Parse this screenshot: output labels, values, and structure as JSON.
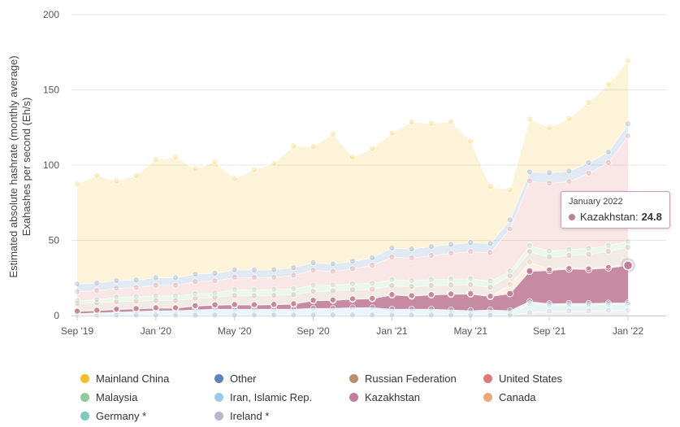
{
  "chart_data": {
    "type": "area",
    "stacked": true,
    "ylabel_line1": "Estimated absolute hashrate (monthly average)",
    "ylabel_line2": "Exahashes per second (Eh/s)",
    "ylim": [
      0,
      200
    ],
    "yticks": [
      0,
      50,
      100,
      150,
      200
    ],
    "x_tick_labels": [
      {
        "index": 0,
        "label": "Sep '19"
      },
      {
        "index": 4,
        "label": "Jan '20"
      },
      {
        "index": 8,
        "label": "May '20"
      },
      {
        "index": 12,
        "label": "Sep '20"
      },
      {
        "index": 16,
        "label": "Jan '21"
      },
      {
        "index": 20,
        "label": "May '21"
      },
      {
        "index": 24,
        "label": "Sep '21"
      },
      {
        "index": 28,
        "label": "Jan '22"
      }
    ],
    "x": [
      "2019-09",
      "2019-10",
      "2019-11",
      "2019-12",
      "2020-01",
      "2020-02",
      "2020-03",
      "2020-04",
      "2020-05",
      "2020-06",
      "2020-07",
      "2020-08",
      "2020-09",
      "2020-10",
      "2020-11",
      "2020-12",
      "2021-01",
      "2021-02",
      "2021-03",
      "2021-04",
      "2021-05",
      "2021-06",
      "2021-07",
      "2021-08",
      "2021-09",
      "2021-10",
      "2021-11",
      "2021-12",
      "2022-01"
    ],
    "grid": true,
    "legend_position": "bottom",
    "series": [
      {
        "name": "Ireland *",
        "color": "#b3b8cc",
        "values": [
          0.2,
          0.2,
          0.2,
          0.2,
          0.2,
          0.2,
          0.2,
          0.2,
          0.2,
          0.2,
          0.2,
          0.2,
          0.2,
          0.2,
          0.2,
          0.2,
          0.2,
          0.2,
          0.2,
          0.2,
          0.2,
          0.2,
          0.2,
          2.0,
          3.0,
          3.2,
          3.2,
          3.5,
          3.6
        ]
      },
      {
        "name": "Germany *",
        "color": "#7ec8bf",
        "values": [
          0.2,
          0.2,
          0.2,
          0.2,
          0.2,
          0.2,
          0.2,
          0.2,
          0.2,
          0.2,
          0.2,
          0.2,
          0.2,
          0.2,
          0.2,
          0.2,
          0.2,
          0.2,
          0.2,
          0.2,
          0.2,
          0.2,
          0.2,
          6.0,
          4.0,
          4.0,
          4.0,
          4.0,
          4.0
        ]
      },
      {
        "name": "Iran, Islamic Rep.",
        "color": "#9dc9ec",
        "values": [
          1.0,
          1.5,
          2.0,
          2.5,
          3.0,
          3.0,
          3.5,
          4.0,
          4.0,
          4.0,
          4.0,
          4.0,
          4.5,
          4.5,
          5.0,
          5.0,
          4.0,
          4.0,
          4.0,
          3.5,
          3.0,
          3.5,
          3.0,
          1.5,
          1.0,
          1.0,
          1.0,
          1.0,
          1.0
        ]
      },
      {
        "name": "Kazakhstan",
        "color": "#c07e98",
        "values": [
          1.4,
          1.5,
          1.7,
          1.6,
          1.6,
          1.6,
          2.5,
          2.6,
          2.8,
          2.7,
          2.9,
          3.3,
          5.1,
          5.3,
          5.6,
          5.9,
          9.4,
          8.7,
          9.4,
          10.3,
          11.0,
          8.8,
          11.2,
          20.0,
          22.0,
          22.8,
          22.5,
          23.2,
          24.8
        ]
      },
      {
        "name": "Canada",
        "color": "#eba77a",
        "values": [
          0.2,
          0.2,
          0.2,
          0.2,
          0.2,
          0.2,
          0.2,
          0.2,
          0.2,
          0.2,
          0.2,
          0.2,
          0.2,
          0.2,
          0.2,
          0.2,
          0.2,
          0.2,
          0.2,
          0.2,
          0.2,
          0.2,
          6.0,
          6.0,
          1.0,
          1.0,
          1.0,
          1.0,
          1.0
        ]
      },
      {
        "name": "Russian Federation",
        "color": "#b98d6f",
        "values": [
          5.0,
          5.0,
          5.0,
          5.0,
          5.0,
          5.0,
          5.0,
          5.0,
          6.0,
          6.0,
          6.0,
          6.0,
          6.0,
          6.0,
          6.0,
          6.0,
          6.0,
          6.0,
          6.0,
          6.0,
          6.0,
          6.0,
          6.0,
          7.0,
          8.0,
          8.0,
          9.0,
          10.0,
          11.0
        ]
      },
      {
        "name": "Malaysia",
        "color": "#8fcc9a",
        "values": [
          2.0,
          2.0,
          3.0,
          3.0,
          3.0,
          3.0,
          3.0,
          3.0,
          4.0,
          4.0,
          4.0,
          4.0,
          4.0,
          4.0,
          4.0,
          4.0,
          4.0,
          4.0,
          4.0,
          4.0,
          4.0,
          4.0,
          3.0,
          4.0,
          4.0,
          4.0,
          4.0,
          4.0,
          4.0
        ]
      },
      {
        "name": "United States",
        "color": "#e07a78",
        "values": [
          6.0,
          6.0,
          6.0,
          6.0,
          7.0,
          7.0,
          8.0,
          8.0,
          8.0,
          8.0,
          8.0,
          9.0,
          10.0,
          9.0,
          10.0,
          12.0,
          15.0,
          15.0,
          16.0,
          17.0,
          18.0,
          19.0,
          28.0,
          43.0,
          45.0,
          45.0,
          50.0,
          55.0,
          70.0
        ]
      },
      {
        "name": "Other",
        "color": "#5b83bf",
        "values": [
          5.0,
          5.0,
          5.0,
          5.0,
          5.0,
          5.0,
          5.0,
          5.0,
          5.0,
          5.0,
          5.0,
          5.0,
          5.0,
          5.0,
          5.0,
          5.0,
          6.0,
          6.0,
          6.0,
          6.0,
          6.0,
          6.0,
          6.0,
          6.0,
          7.0,
          7.0,
          7.0,
          7.0,
          8.0
        ]
      },
      {
        "name": "Mainland China",
        "color": "#f6bd2b",
        "values": [
          66.6,
          71.6,
          66.2,
          69.4,
          78.6,
          80.0,
          70.0,
          74.0,
          60.7,
          66.7,
          70.6,
          80.9,
          77.2,
          86.4,
          69.2,
          72.5,
          76.3,
          84.4,
          81.7,
          81.4,
          67.4,
          38.0,
          20.0,
          35.0,
          30.0,
          35.0,
          40.0,
          45.0,
          42.0
        ]
      }
    ]
  },
  "legend": [
    {
      "label": "Mainland China",
      "color": "#f6bd2b"
    },
    {
      "label": "Other",
      "color": "#5b83bf"
    },
    {
      "label": "Russian Federation",
      "color": "#b98d6f"
    },
    {
      "label": "United States",
      "color": "#e07a78"
    },
    {
      "label": "Malaysia",
      "color": "#8fcc9a"
    },
    {
      "label": "Iran, Islamic Rep.",
      "color": "#9dc9ec"
    },
    {
      "label": "Kazakhstan",
      "color": "#c07e98"
    },
    {
      "label": "Canada",
      "color": "#eba77a"
    },
    {
      "label": "Germany *",
      "color": "#7ec8bf"
    },
    {
      "label": "Ireland *",
      "color": "#b3b8cc"
    }
  ],
  "tooltip": {
    "title": "January 2022",
    "series": "Kazakhstan",
    "separator": ":",
    "value": "24.8",
    "color": "#c07e98",
    "point_index": 28
  },
  "highlight_series": "Kazakhstan"
}
